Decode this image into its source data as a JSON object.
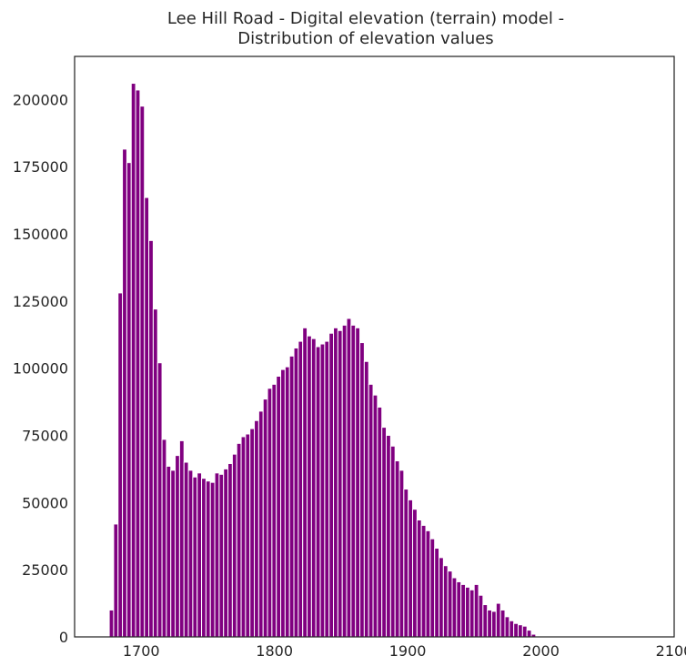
{
  "chart_data": {
    "type": "bar",
    "title_lines": [
      "Lee Hill Road - Digital elevation (terrain) model -",
      "Distribution of elevation values"
    ],
    "xlabel": "",
    "ylabel": "",
    "xlim": [
      1650,
      2100
    ],
    "ylim": [
      0,
      216000
    ],
    "xticks": [
      1700,
      1800,
      1900,
      2000,
      2100
    ],
    "yticks": [
      0,
      25000,
      50000,
      75000,
      100000,
      125000,
      150000,
      175000,
      200000
    ],
    "grid": false,
    "legend": "none",
    "bar_color": "#800080",
    "bin_start": 1676,
    "bin_width": 3.3,
    "values": [
      10000,
      42000,
      128000,
      181500,
      176500,
      206000,
      203500,
      197500,
      163500,
      147500,
      122000,
      102000,
      73500,
      63500,
      62000,
      67500,
      73000,
      65000,
      62000,
      59500,
      61000,
      59000,
      58000,
      57500,
      61000,
      60500,
      62500,
      64500,
      68000,
      72000,
      74500,
      75500,
      77500,
      80500,
      84000,
      88500,
      92500,
      94000,
      97000,
      99500,
      100500,
      104500,
      107500,
      110000,
      115000,
      112000,
      111000,
      108000,
      109000,
      110000,
      113000,
      115000,
      114000,
      116000,
      118500,
      116000,
      115000,
      109500,
      102500,
      94000,
      90000,
      85500,
      78000,
      75000,
      71000,
      65500,
      62000,
      55000,
      51000,
      47500,
      43500,
      41500,
      39500,
      36500,
      33000,
      29500,
      26500,
      24500,
      22000,
      20500,
      19500,
      18500,
      17500,
      19500,
      15500,
      12000,
      10000,
      9500,
      12500,
      10000,
      7500,
      6000,
      5000,
      4500,
      4000,
      2500,
      1000
    ]
  }
}
